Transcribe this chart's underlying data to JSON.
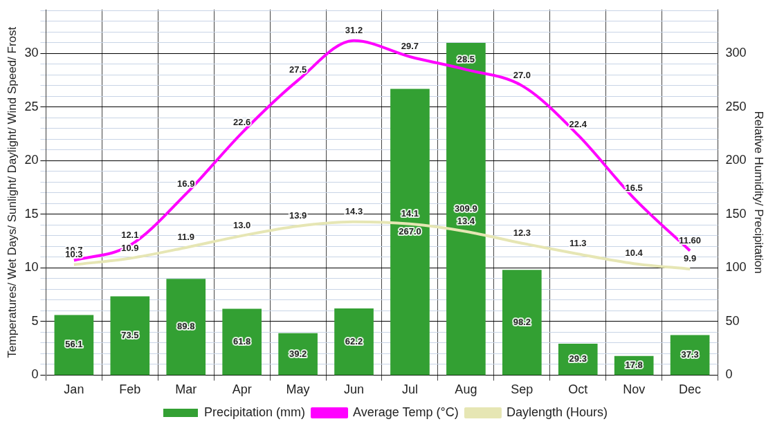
{
  "chart_data": {
    "type": "bar",
    "ylabel": "Temperatures/ Wet Days/ Sunlight/ Daylight/ Wind Speed/ Frost",
    "y2label": "Relative Humidity/ Precipitation",
    "categories": [
      "Jan",
      "Feb",
      "Mar",
      "Apr",
      "May",
      "Jun",
      "Jul",
      "Aug",
      "Sep",
      "Oct",
      "Nov",
      "Dec"
    ],
    "series": [
      {
        "name": "Precipitation (mm)",
        "type": "bar",
        "axis": "y2",
        "color": "#33a033",
        "values": [
          56.1,
          73.5,
          89.8,
          61.8,
          39.2,
          62.2,
          267.0,
          309.9,
          98.2,
          29.3,
          17.8,
          37.3
        ],
        "value_labels": [
          "56.1",
          "73.5",
          "89.8",
          "61.8",
          "39.2",
          "62.2",
          "267.0",
          "309.9",
          "98.2",
          "29.3",
          "17.8",
          "37.3"
        ]
      },
      {
        "name": "Average Temp (°C)",
        "type": "line",
        "color": "#ff00ff",
        "values": [
          10.7,
          12.1,
          16.9,
          22.6,
          27.5,
          31.2,
          29.7,
          28.5,
          27.0,
          22.4,
          16.5,
          11.6
        ],
        "value_labels": [
          "10.7",
          "12.1",
          "16.9",
          "22.6",
          "27.5",
          "31.2",
          "29.7",
          "28.5",
          "27.0",
          "22.4",
          "16.5",
          "11.60"
        ]
      },
      {
        "name": "Daylength (Hours)",
        "type": "line",
        "color": "#e6e6b4",
        "values": [
          10.3,
          10.9,
          11.9,
          13.0,
          13.9,
          14.3,
          14.1,
          13.4,
          12.3,
          11.3,
          10.4,
          9.9
        ],
        "value_labels": [
          "10.3",
          "10.9",
          "11.9",
          "13.0",
          "13.9",
          "14.3",
          "14.1",
          "13.4",
          "12.3",
          "11.3",
          "10.4",
          "9.9"
        ]
      }
    ],
    "ylim": [
      0,
      34.1
    ],
    "yticks": [
      0,
      {
        "value": 1,
        "label": null
      },
      {
        "value": 2,
        "label": null
      },
      {
        "value": 3,
        "label": null
      },
      {
        "value": 4,
        "label": null
      },
      5,
      {
        "value": 6,
        "label": null
      },
      {
        "value": 7,
        "label": null
      },
      {
        "value": 8,
        "label": null
      },
      {
        "value": 9,
        "label": null
      },
      10,
      {
        "value": 11,
        "label": null
      },
      {
        "value": 12,
        "label": null
      },
      {
        "value": 13,
        "label": null
      },
      {
        "value": 14,
        "label": null
      },
      15,
      {
        "value": 16,
        "label": null
      },
      {
        "value": 17,
        "label": null
      },
      {
        "value": 18,
        "label": null
      },
      {
        "value": 19,
        "label": null
      },
      20,
      {
        "value": 21,
        "label": null
      },
      {
        "value": 22,
        "label": null
      },
      {
        "value": 23,
        "label": null
      },
      {
        "value": 24,
        "label": null
      },
      25,
      {
        "value": 26,
        "label": null
      },
      {
        "value": 27,
        "label": null
      },
      {
        "value": 28,
        "label": null
      },
      {
        "value": 29,
        "label": null
      },
      30,
      {
        "value": 31,
        "label": null
      },
      {
        "value": 32,
        "label": null
      },
      {
        "value": 33,
        "label": null
      },
      {
        "value": 34,
        "label": null
      }
    ],
    "y2lim": [
      0,
      341
    ],
    "y2ticks": [
      0,
      50,
      100,
      150,
      200,
      250,
      300
    ],
    "grid": true,
    "legend": "bottom",
    "marker": "none",
    "line_style": "solid"
  }
}
